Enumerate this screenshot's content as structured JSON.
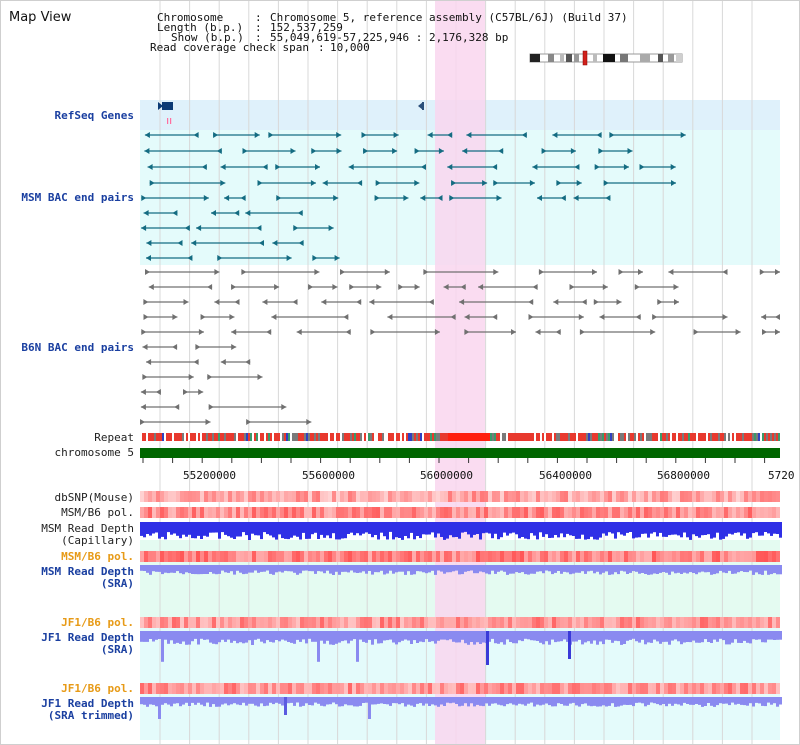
{
  "page": {
    "title": "Map View"
  },
  "info": {
    "chromosome_key": "Chromosome",
    "chromosome_value": "Chromosome 5, reference assembly (C57BL/6J) (Build 37)",
    "length_key": "Length (b.p.)",
    "length_value": "152,537,259",
    "show_key": "Show (b.p.)",
    "show_value": "55,049,619-57,225,946 : 2,176,328 bp",
    "coverage_key": "Read coverage check span",
    "coverage_value": "10,000"
  },
  "tracks": {
    "refseq_genes": "RefSeq Genes",
    "msm_bac_end_pairs": "MSM BAC end pairs",
    "b6n_bac_end_pairs": "B6N BAC end pairs",
    "repeat": "Repeat",
    "chromosome": "chromosome 5",
    "dbsnp": "dbSNP(Mouse)",
    "msm_b6_pol_1": "MSM/B6 pol.",
    "msm_read_depth_cap_1": "MSM Read Depth",
    "msm_read_depth_cap_2": "(Capillary)",
    "msm_b6_pol_2": "MSM/B6 pol.",
    "msm_read_depth_sra_1": "MSM Read Depth",
    "msm_read_depth_sra_2": "(SRA)",
    "jf1_b6_pol_1": "JF1/B6 pol.",
    "jf1_read_depth_sra_1": "JF1 Read Depth",
    "jf1_read_depth_sra_2": "(SRA)",
    "jf1_b6_pol_2": "JF1/B6 pol.",
    "jf1_read_depth_trim_1": "JF1 Read Depth",
    "jf1_read_depth_trim_2": "(SRA trimmed)"
  },
  "axis": {
    "ticks": [
      "55200000",
      "55600000",
      "56000000",
      "56400000",
      "56800000",
      "5720"
    ]
  },
  "colors": {
    "highlight": "#f9d6ef",
    "refseq_bg": "#dff1fb",
    "msm_bg": "#e4fbfb",
    "chromosome_bar": "#006600",
    "depth_blue": "#2f2fe6",
    "depth_light": "#8a8af0",
    "snp_red": "#ff6a6a",
    "label_blue": "#1a3fa0",
    "label_orange": "#e79a16"
  }
}
